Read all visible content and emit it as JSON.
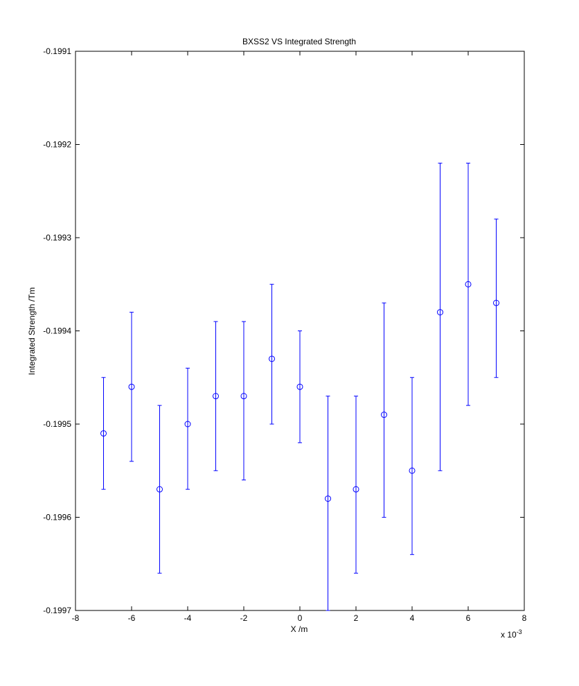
{
  "chart_data": {
    "type": "scatter",
    "title": "BXSS2  VS Integrated Strength",
    "xlabel": "X /m",
    "ylabel": "Integrated Strength /Tm",
    "x_exponent_label": "x 10",
    "x_exponent_power": "-3",
    "xlim": [
      -8,
      8
    ],
    "ylim": [
      -0.1997,
      -0.1991
    ],
    "x_tick_values": [
      -8,
      -6,
      -4,
      -2,
      0,
      2,
      4,
      6,
      8
    ],
    "x_tick_labels": [
      "-8",
      "-6",
      "-4",
      "-2",
      "0",
      "2",
      "4",
      "6",
      "8"
    ],
    "y_tick_values": [
      -0.1997,
      -0.1996,
      -0.1995,
      -0.1994,
      -0.1993,
      -0.1992,
      -0.1991
    ],
    "y_tick_labels": [
      "-0.1997",
      "-0.1996",
      "-0.1995",
      "-0.1994",
      "-0.1993",
      "-0.1992",
      "-0.1991"
    ],
    "grid": false,
    "marker": "circle",
    "color": "#0000ff",
    "series": [
      {
        "x": [
          -7,
          -6,
          -5,
          -4,
          -3,
          -2,
          -1,
          0,
          1,
          2,
          3,
          4,
          5,
          6,
          7
        ],
        "y": [
          -0.19951,
          -0.19946,
          -0.19957,
          -0.1995,
          -0.19947,
          -0.19947,
          -0.19943,
          -0.19946,
          -0.19958,
          -0.19957,
          -0.19949,
          -0.19955,
          -0.19938,
          -0.19935,
          -0.19937
        ],
        "err_low": [
          -0.19957,
          -0.19954,
          -0.19966,
          -0.19957,
          -0.19955,
          -0.19956,
          -0.1995,
          -0.19952,
          -0.1997,
          -0.19966,
          -0.1996,
          -0.19964,
          -0.19955,
          -0.19948,
          -0.19945
        ],
        "err_high": [
          -0.19945,
          -0.19938,
          -0.19948,
          -0.19944,
          -0.19939,
          -0.19939,
          -0.19935,
          -0.1994,
          -0.19947,
          -0.19947,
          -0.19937,
          -0.19945,
          -0.19922,
          -0.19922,
          -0.19928
        ]
      }
    ]
  }
}
